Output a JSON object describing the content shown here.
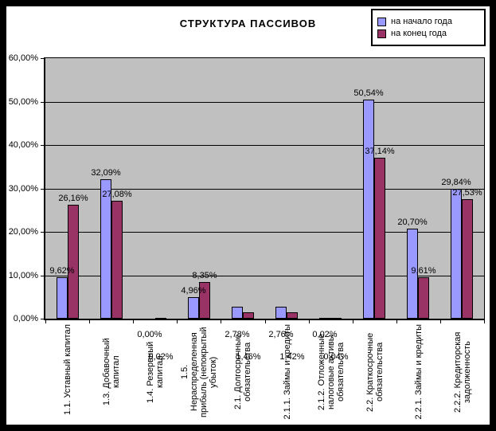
{
  "window": {
    "frame_color": "#000000",
    "background": "#FFFFFF"
  },
  "chart_data": {
    "type": "bar",
    "title": "СТРУКТУРА ПАССИВОВ",
    "plot_background": "#C0C0C0",
    "grid": true,
    "legend_position": "top-right",
    "ylim": [
      0,
      60
    ],
    "ytick_step": 10,
    "yticks": [
      "60,00%",
      "50,00%",
      "40,00%",
      "30,00%",
      "20,00%",
      "10,00%",
      "0,00%"
    ],
    "categories": [
      "1.1. Уставный капитал",
      "1.3. Добавочный капитал",
      "1.4. Резервный капитал",
      "1.5. Нераспределенная прибыль (непокрытый убыток)",
      "2.1. Долгосрочные обязательства",
      "2.1.1. Займы и кредиты",
      "2.1.2. Отложенные налоговые активы обязательства",
      "2.2. Краткосрочные обязательства",
      "2.2.1. Займы и кредиты",
      "2.2.2. Кредиторская задолженность"
    ],
    "series": [
      {
        "name": "на начало года",
        "color": "#9999FF",
        "values": [
          9.62,
          32.09,
          0.0,
          4.96,
          2.78,
          2.76,
          0.02,
          50.54,
          20.7,
          29.84
        ],
        "labels": [
          "9,62%",
          "32,09%",
          "0,00%",
          "4,96%",
          "2,78%",
          "2,76%",
          "0,02%",
          "50,54%",
          "20,70%",
          "29,84%"
        ]
      },
      {
        "name": "на конец года",
        "color": "#993366",
        "values": [
          26.16,
          27.08,
          0.02,
          8.35,
          1.46,
          1.42,
          0.04,
          37.14,
          9.61,
          27.53
        ],
        "labels": [
          "26,16%",
          "27,08%",
          "0,02%",
          "8,35%",
          "1,46%",
          "1,42%",
          "0,04%",
          "37,14%",
          "9,61%",
          "27,53%"
        ]
      }
    ]
  }
}
